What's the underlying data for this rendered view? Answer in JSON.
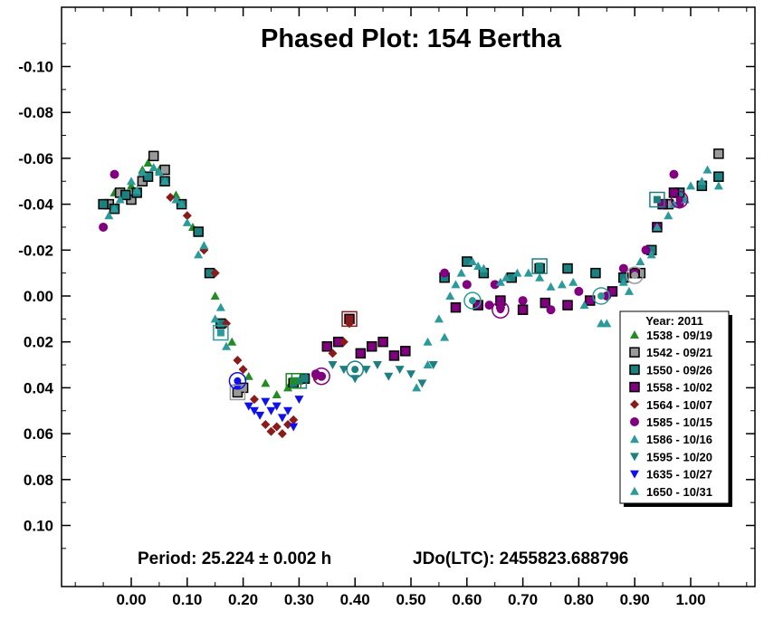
{
  "chart_data": {
    "type": "scatter",
    "title": "Phased Plot: 154 Bertha",
    "xlabel": "",
    "ylabel": "",
    "xlim": [
      -0.11,
      1.11
    ],
    "ylim": [
      0.12,
      -0.12
    ],
    "y_axis_inverted": true,
    "xticks": [
      0.0,
      0.1,
      0.2,
      0.3,
      0.4,
      0.5,
      0.6,
      0.7,
      0.8,
      0.9,
      1.0
    ],
    "xtick_labels": [
      "0.00",
      "0.10",
      "0.20",
      "0.30",
      "0.40",
      "0.50",
      "0.60",
      "0.70",
      "0.80",
      "0.90",
      "1.00"
    ],
    "yticks": [
      -0.1,
      -0.08,
      -0.06,
      -0.04,
      -0.02,
      0.0,
      0.02,
      0.04,
      0.06,
      0.08,
      0.1
    ],
    "ytick_labels": [
      "-0.10",
      "-0.08",
      "-0.06",
      "-0.04",
      "-0.02",
      "0.00",
      "0.02",
      "0.04",
      "0.06",
      "0.08",
      "0.10"
    ],
    "grid": false,
    "period_text": "Period: 25.224 ± 0.002 h",
    "epoch_text": "JDo(LTC): 2455823.688796",
    "legend": {
      "placement": "right",
      "title": "Year: 2011",
      "entries": [
        {
          "label": "1538 - 09/19",
          "marker": "triangle-up",
          "color": "#228B22"
        },
        {
          "label": "1542 - 09/21",
          "marker": "square",
          "color": "#9a9a9a"
        },
        {
          "label": "1550 - 09/26",
          "marker": "square",
          "color": "#1a8080"
        },
        {
          "label": "1558 - 10/02",
          "marker": "square",
          "color": "#800080"
        },
        {
          "label": "1564 - 10/07",
          "marker": "diamond",
          "color": "#8B1A1A"
        },
        {
          "label": "1585 - 10/15",
          "marker": "circle",
          "color": "#800080"
        },
        {
          "label": "1586 - 10/16",
          "marker": "triangle-up",
          "color": "#2a9a9a"
        },
        {
          "label": "1595 - 10/20",
          "marker": "triangle-down",
          "color": "#1a8080"
        },
        {
          "label": "1635 - 10/27",
          "marker": "triangle-down",
          "color": "#1010ee"
        },
        {
          "label": "1650 - 10/31",
          "marker": "triangle-up",
          "color": "#2a9a9a"
        }
      ]
    },
    "series": [
      {
        "name": "1538 - 09/19",
        "marker": "triangle-up",
        "color": "#228B22",
        "x": [
          -0.03,
          0.0,
          0.02,
          0.03,
          0.05,
          0.08,
          0.11,
          0.15,
          0.18,
          0.21,
          0.24,
          0.26,
          0.28,
          0.3
        ],
        "y": [
          -0.045,
          -0.048,
          -0.055,
          -0.058,
          -0.055,
          -0.044,
          -0.03,
          0.0,
          0.02,
          0.035,
          0.038,
          0.043,
          0.04,
          0.037
        ]
      },
      {
        "name": "1542 - 09/21",
        "marker": "square",
        "color": "#9a9a9a",
        "x": [
          -0.04,
          -0.02,
          0.0,
          0.02,
          0.04,
          0.06,
          0.19,
          0.2,
          0.91,
          0.96,
          1.05
        ],
        "y": [
          -0.04,
          -0.045,
          -0.042,
          -0.05,
          -0.061,
          -0.055,
          0.042,
          0.04,
          -0.01,
          -0.04,
          -0.062
        ]
      },
      {
        "name": "1550 - 09/26",
        "marker": "square",
        "color": "#1a8080",
        "x": [
          -0.05,
          -0.03,
          -0.01,
          0.01,
          0.03,
          0.06,
          0.09,
          0.12,
          0.14,
          0.16,
          0.29,
          0.31,
          0.56,
          0.6,
          0.63,
          0.68,
          0.73,
          0.78,
          0.83,
          0.88,
          0.93,
          0.95,
          0.98,
          1.02,
          1.05
        ],
        "y": [
          -0.04,
          -0.038,
          -0.044,
          -0.045,
          -0.052,
          -0.05,
          -0.04,
          -0.028,
          -0.01,
          0.012,
          0.038,
          0.036,
          -0.008,
          -0.015,
          -0.01,
          -0.008,
          -0.012,
          -0.012,
          -0.01,
          -0.008,
          -0.02,
          -0.04,
          -0.045,
          -0.048,
          -0.052
        ]
      },
      {
        "name": "1558 - 10/02",
        "marker": "square",
        "color": "#800080",
        "x": [
          0.35,
          0.37,
          0.39,
          0.41,
          0.43,
          0.45,
          0.47,
          0.49,
          0.58,
          0.62,
          0.66,
          0.7,
          0.74,
          0.78,
          0.82,
          0.86,
          0.9,
          0.94,
          0.97
        ],
        "y": [
          0.022,
          0.02,
          0.01,
          0.025,
          0.022,
          0.02,
          0.026,
          0.024,
          0.005,
          0.004,
          0.002,
          0.006,
          0.003,
          0.004,
          0.002,
          -0.002,
          -0.01,
          -0.03,
          -0.045
        ]
      },
      {
        "name": "1564 - 10/07",
        "marker": "diamond",
        "color": "#8B1A1A",
        "x": [
          0.07,
          0.1,
          0.13,
          0.15,
          0.17,
          0.19,
          0.2,
          0.22,
          0.24,
          0.25,
          0.26,
          0.27,
          0.28,
          0.29,
          0.33,
          0.36,
          0.38,
          0.39
        ],
        "y": [
          -0.043,
          -0.035,
          -0.02,
          -0.01,
          0.012,
          0.028,
          0.032,
          0.045,
          0.056,
          0.059,
          0.057,
          0.06,
          0.056,
          0.054,
          0.035,
          0.025,
          0.02,
          0.012
        ]
      },
      {
        "name": "1585 - 10/15",
        "marker": "circle",
        "color": "#800080",
        "x": [
          -0.05,
          -0.03,
          0.33,
          0.34,
          0.56,
          0.6,
          0.64,
          0.65,
          0.66,
          0.7,
          0.75,
          0.8,
          0.85,
          0.88,
          0.92,
          0.95,
          0.97,
          0.98
        ],
        "y": [
          -0.03,
          -0.053,
          0.034,
          0.035,
          -0.01,
          -0.005,
          0.004,
          -0.005,
          0.005,
          0.002,
          0.006,
          -0.002,
          0.0,
          -0.012,
          -0.02,
          -0.04,
          -0.053,
          -0.04
        ]
      },
      {
        "name": "1586 - 10/16",
        "marker": "triangle-up",
        "color": "#2a9a9a",
        "x": [
          -0.04,
          -0.02,
          0.0,
          0.02,
          0.04,
          0.06,
          0.08,
          0.1,
          0.12,
          0.15,
          0.17,
          0.53,
          0.55,
          0.57,
          0.59,
          0.61,
          0.63,
          0.67,
          0.71,
          0.75,
          0.79,
          0.84,
          0.88,
          0.91,
          0.94,
          0.97,
          1.0,
          1.03
        ],
        "y": [
          -0.035,
          -0.042,
          -0.05,
          -0.054,
          -0.056,
          -0.05,
          -0.042,
          -0.032,
          -0.018,
          0.01,
          0.022,
          0.02,
          0.01,
          0.0,
          -0.01,
          -0.015,
          -0.012,
          -0.008,
          -0.01,
          -0.004,
          -0.006,
          0.012,
          -0.006,
          -0.015,
          -0.03,
          -0.04,
          -0.048,
          -0.055
        ]
      },
      {
        "name": "1595 - 10/20",
        "marker": "triangle-down",
        "color": "#1a8080",
        "x": [
          0.36,
          0.38,
          0.4,
          0.42,
          0.44,
          0.46,
          0.48,
          0.5,
          0.52,
          0.54
        ],
        "y": [
          0.03,
          0.032,
          0.036,
          0.032,
          0.03,
          0.035,
          0.032,
          0.034,
          0.038,
          0.03
        ]
      },
      {
        "name": "1635 - 10/27",
        "marker": "triangle-down",
        "color": "#1010ee",
        "x": [
          0.19,
          0.21,
          0.22,
          0.23,
          0.24,
          0.25,
          0.26,
          0.27,
          0.28,
          0.29,
          0.3
        ],
        "y": [
          0.04,
          0.048,
          0.05,
          0.052,
          0.046,
          0.05,
          0.048,
          0.053,
          0.05,
          0.057,
          0.045
        ]
      },
      {
        "name": "1650 - 10/31",
        "marker": "triangle-up",
        "color": "#2a9a9a",
        "x": [
          -0.03,
          0.01,
          0.05,
          0.09,
          0.13,
          0.16,
          0.51,
          0.53,
          0.56,
          0.58,
          0.62,
          0.66,
          0.69,
          0.73,
          0.77,
          0.81,
          0.85,
          0.89,
          0.93,
          0.96,
          0.99,
          1.02,
          1.05
        ],
        "y": [
          -0.038,
          -0.046,
          -0.054,
          -0.04,
          -0.022,
          0.005,
          0.04,
          0.03,
          0.018,
          -0.005,
          -0.013,
          -0.006,
          -0.01,
          -0.008,
          -0.005,
          0.004,
          0.012,
          -0.002,
          -0.018,
          -0.035,
          -0.042,
          -0.05,
          -0.048
        ]
      }
    ],
    "highlighted_points": [
      {
        "marker": "square",
        "color": "#8B1A1A",
        "x": 0.39,
        "y": 0.01
      },
      {
        "marker": "square",
        "color": "#1a8080",
        "x": 0.73,
        "y": -0.013
      },
      {
        "marker": "square",
        "color": "#1a8080",
        "x": 0.94,
        "y": -0.042
      },
      {
        "marker": "square",
        "color": "#2a9a9a",
        "x": 0.16,
        "y": 0.016
      },
      {
        "marker": "square",
        "color": "#9a9a9a",
        "x": 0.19,
        "y": 0.042
      },
      {
        "marker": "square",
        "color": "#1a8080",
        "x": 0.3,
        "y": 0.037
      },
      {
        "marker": "square",
        "color": "#228B22",
        "x": 0.29,
        "y": 0.037
      },
      {
        "marker": "circle",
        "color": "#1a8080",
        "x": 0.4,
        "y": 0.032
      },
      {
        "marker": "circle",
        "color": "#800080",
        "x": 0.34,
        "y": 0.035
      },
      {
        "marker": "circle",
        "color": "#800080",
        "x": 0.66,
        "y": 0.006
      },
      {
        "marker": "circle",
        "color": "#1010ee",
        "x": 0.19,
        "y": 0.037
      },
      {
        "marker": "circle",
        "color": "#2a9a9a",
        "x": 0.61,
        "y": 0.002
      },
      {
        "marker": "circle",
        "color": "#2a9a9a",
        "x": 0.84,
        "y": 0.0
      },
      {
        "marker": "circle",
        "color": "#9a9a9a",
        "x": 0.9,
        "y": -0.009
      },
      {
        "marker": "circle",
        "color": "#800080",
        "x": 0.98,
        "y": -0.042
      }
    ]
  }
}
